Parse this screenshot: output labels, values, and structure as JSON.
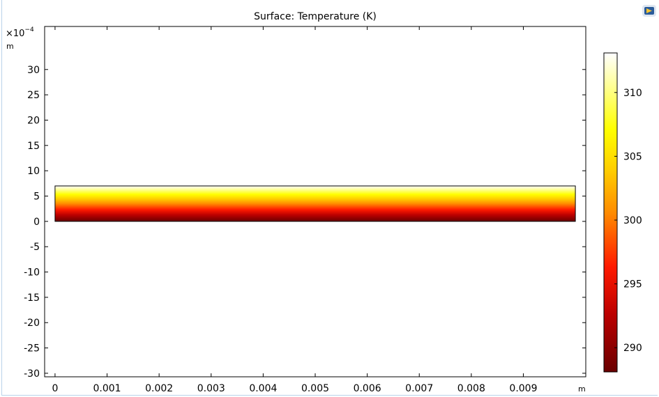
{
  "chart_data": {
    "type": "heatmap",
    "title": "Surface: Temperature (K)",
    "x_unit": "m",
    "y_unit": "m",
    "y_multiplier": "×10",
    "y_exponent": "−4",
    "xlim": [
      -0.0002,
      0.0102
    ],
    "ylim": [
      -30.7,
      38.5
    ],
    "x_ticks": [
      0,
      0.001,
      0.002,
      0.003,
      0.004,
      0.005,
      0.006,
      0.007,
      0.008,
      0.009
    ],
    "x_tick_labels": [
      "0",
      "0.001",
      "0.002",
      "0.003",
      "0.004",
      "0.005",
      "0.006",
      "0.007",
      "0.008",
      "0.009"
    ],
    "y_ticks": [
      30,
      25,
      20,
      15,
      10,
      5,
      0,
      -5,
      -10,
      -15,
      -20,
      -25,
      -30
    ],
    "y_tick_labels": [
      "30",
      "25",
      "20",
      "15",
      "10",
      "5",
      "0",
      "-5",
      "-10",
      "-15",
      "-20",
      "-25",
      "-30"
    ],
    "domain": {
      "x": [
        0,
        0.01
      ],
      "y": [
        0,
        7
      ]
    },
    "field": {
      "direction": "vertical",
      "min_at": "bottom",
      "values_at_y": [
        {
          "y": 0,
          "value": 288.1
        },
        {
          "y": 7,
          "value": 313.1
        }
      ]
    },
    "colorbar": {
      "range": [
        288.1,
        313.1
      ],
      "ticks": [
        290,
        295,
        300,
        305,
        310
      ],
      "tick_labels": [
        "290",
        "295",
        "300",
        "305",
        "310"
      ],
      "colormap": "heat",
      "stops": [
        {
          "t": 0.0,
          "color": "#6a0000"
        },
        {
          "t": 0.18,
          "color": "#bb0000"
        },
        {
          "t": 0.33,
          "color": "#ff1a00"
        },
        {
          "t": 0.5,
          "color": "#ff8c00"
        },
        {
          "t": 0.63,
          "color": "#ffcc00"
        },
        {
          "t": 0.76,
          "color": "#ffff00"
        },
        {
          "t": 0.9,
          "color": "#ffff99"
        },
        {
          "t": 1.0,
          "color": "#ffffff"
        }
      ]
    }
  }
}
